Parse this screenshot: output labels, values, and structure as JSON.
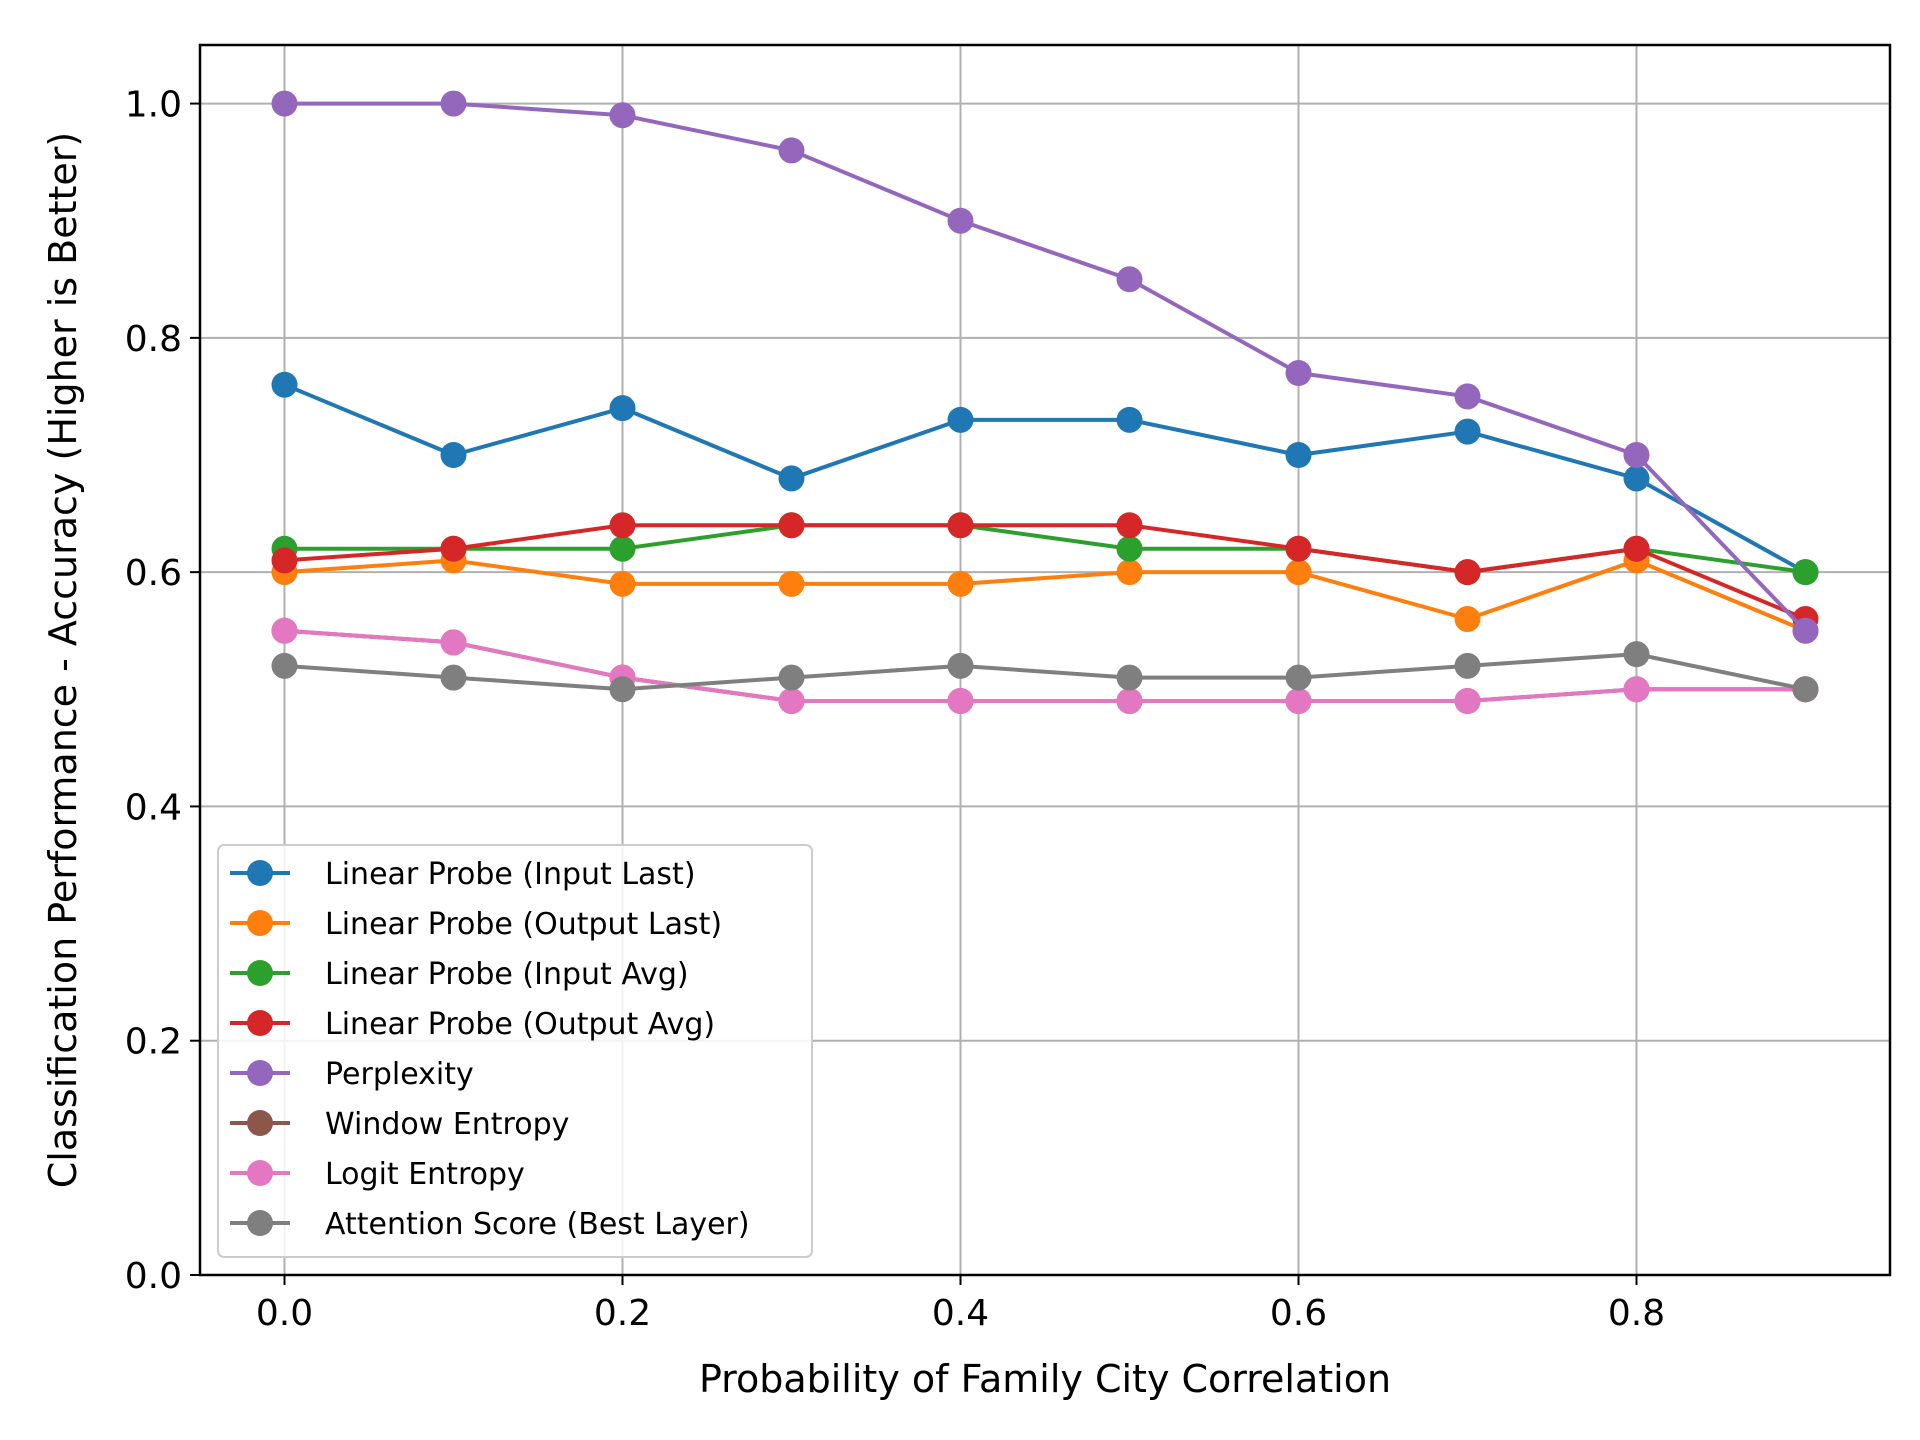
{
  "chart_data": {
    "type": "line",
    "title": "",
    "xlabel": "Probability of Family City Correlation",
    "ylabel": "Classification Performance - Accuracy (Higher is Better)",
    "x": [
      0.0,
      0.1,
      0.2,
      0.3,
      0.4,
      0.5,
      0.6,
      0.7,
      0.8,
      0.9
    ],
    "xlim": [
      -0.05,
      0.95
    ],
    "ylim": [
      0.0,
      1.05
    ],
    "xticks": [
      0.0,
      0.2,
      0.4,
      0.6,
      0.8
    ],
    "xtick_labels": [
      "0.0",
      "0.2",
      "0.4",
      "0.6",
      "0.8"
    ],
    "yticks": [
      0.0,
      0.2,
      0.4,
      0.6,
      0.8,
      1.0
    ],
    "ytick_labels": [
      "0.0",
      "0.2",
      "0.4",
      "0.6",
      "0.8",
      "1.0"
    ],
    "grid": true,
    "legend_position": "lower-left",
    "series": [
      {
        "name": "Linear Probe (Input Last)",
        "color": "#1f77b4",
        "values": [
          0.76,
          0.7,
          0.74,
          0.68,
          0.73,
          0.73,
          0.7,
          0.72,
          0.68,
          0.6
        ]
      },
      {
        "name": "Linear Probe (Output Last)",
        "color": "#ff7f0e",
        "values": [
          0.6,
          0.61,
          0.59,
          0.59,
          0.59,
          0.6,
          0.6,
          0.56,
          0.61,
          0.55
        ]
      },
      {
        "name": "Linear Probe (Input Avg)",
        "color": "#2ca02c",
        "values": [
          0.62,
          0.62,
          0.62,
          0.64,
          0.64,
          0.62,
          0.62,
          0.6,
          0.62,
          0.6
        ]
      },
      {
        "name": "Linear Probe (Output Avg)",
        "color": "#d62728",
        "values": [
          0.61,
          0.62,
          0.64,
          0.64,
          0.64,
          0.64,
          0.62,
          0.6,
          0.62,
          0.56
        ]
      },
      {
        "name": "Perplexity",
        "color": "#9467bd",
        "values": [
          1.0,
          1.0,
          0.99,
          0.96,
          0.9,
          0.85,
          0.77,
          0.75,
          0.7,
          0.55
        ]
      },
      {
        "name": "Window Entropy",
        "color": "#8c564b",
        "values": [
          0.55,
          0.54,
          0.51,
          0.49,
          0.49,
          0.49,
          0.49,
          0.49,
          0.5,
          0.5
        ]
      },
      {
        "name": "Logit Entropy",
        "color": "#e377c2",
        "values": [
          0.55,
          0.54,
          0.51,
          0.49,
          0.49,
          0.49,
          0.49,
          0.49,
          0.5,
          0.5
        ]
      },
      {
        "name": "Attention Score (Best Layer)",
        "color": "#7f7f7f",
        "values": [
          0.52,
          0.51,
          0.5,
          0.51,
          0.52,
          0.51,
          0.51,
          0.52,
          0.53,
          0.5
        ]
      }
    ]
  }
}
